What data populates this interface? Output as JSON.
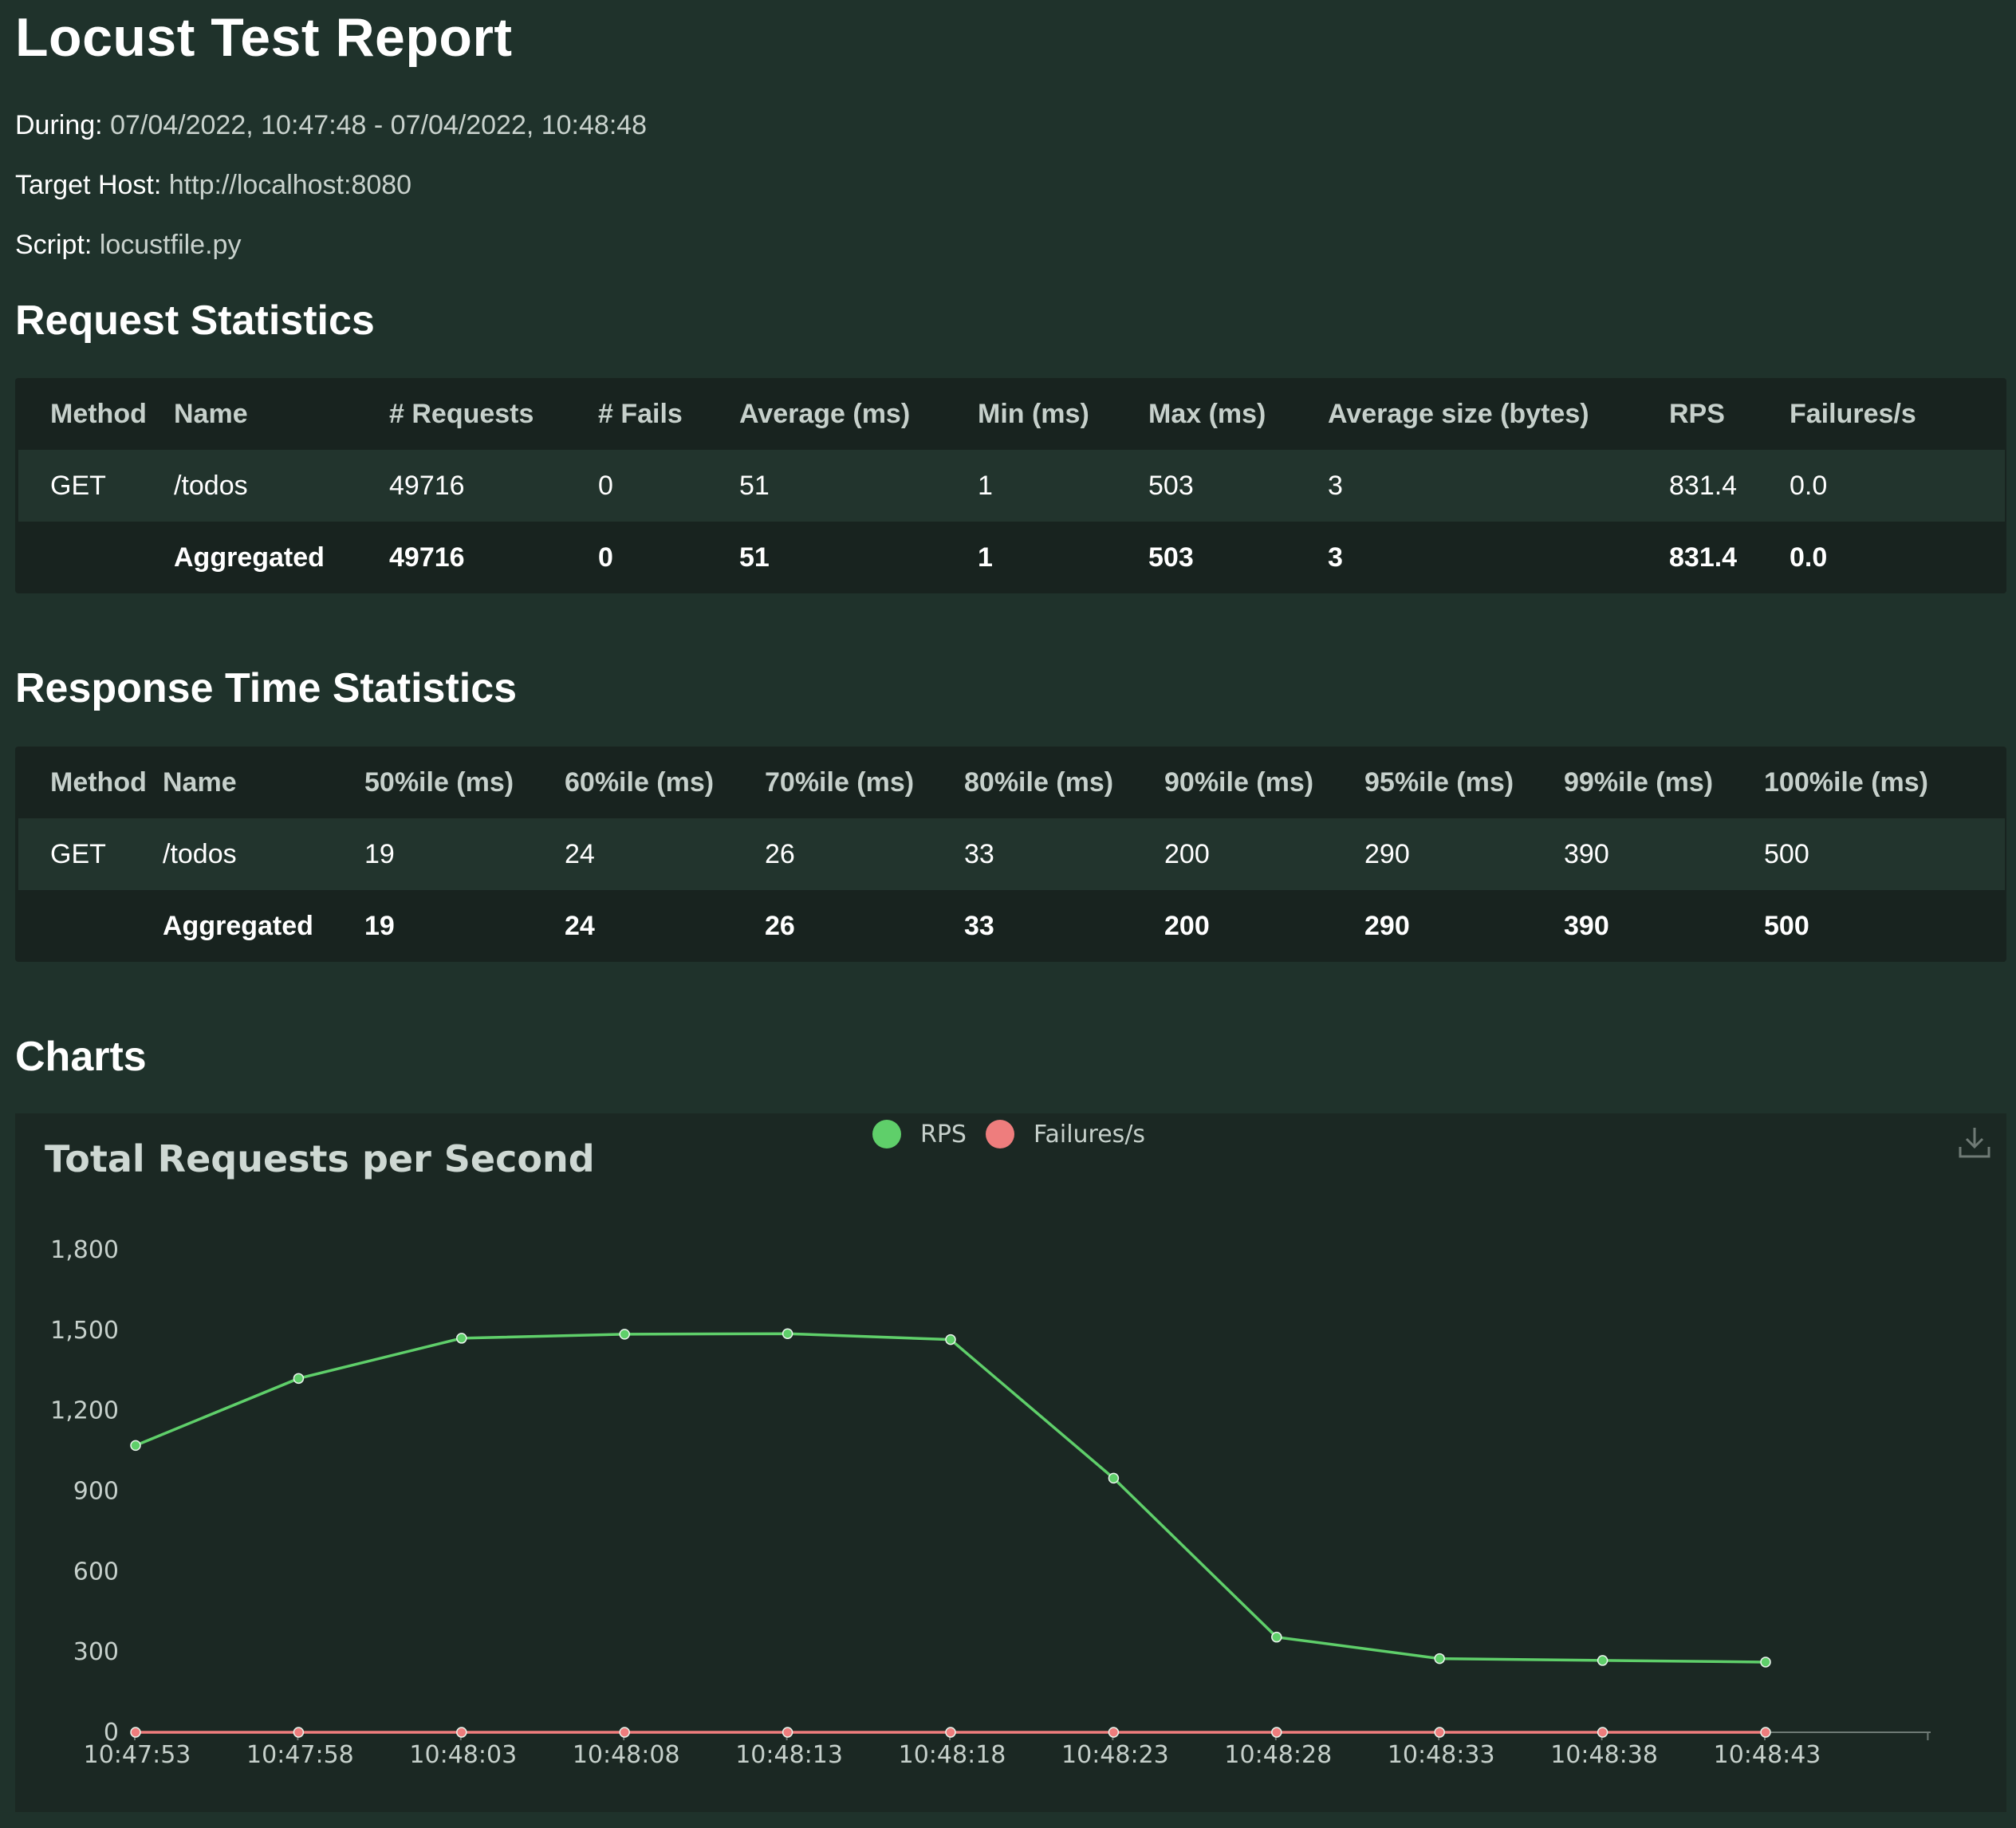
{
  "page": {
    "title": "Locust Test Report",
    "during_label": "During:",
    "during_value": "07/04/2022, 10:47:48 - 07/04/2022, 10:48:48",
    "host_label": "Target Host:",
    "host_value": "http://localhost:8080",
    "script_label": "Script:",
    "script_value": "locustfile.py"
  },
  "request_stats": {
    "heading": "Request Statistics",
    "columns": [
      "Method",
      "Name",
      "# Requests",
      "# Fails",
      "Average (ms)",
      "Min (ms)",
      "Max (ms)",
      "Average size (bytes)",
      "RPS",
      "Failures/s"
    ],
    "rows": [
      [
        "GET",
        "/todos",
        "49716",
        "0",
        "51",
        "1",
        "503",
        "3",
        "831.4",
        "0.0"
      ]
    ],
    "aggregated": [
      "",
      "Aggregated",
      "49716",
      "0",
      "51",
      "1",
      "503",
      "3",
      "831.4",
      "0.0"
    ]
  },
  "response_stats": {
    "heading": "Response Time Statistics",
    "columns": [
      "Method",
      "Name",
      "50%ile (ms)",
      "60%ile (ms)",
      "70%ile (ms)",
      "80%ile (ms)",
      "90%ile (ms)",
      "95%ile (ms)",
      "99%ile (ms)",
      "100%ile (ms)"
    ],
    "rows": [
      [
        "GET",
        "/todos",
        "19",
        "24",
        "26",
        "33",
        "200",
        "290",
        "390",
        "500"
      ]
    ],
    "aggregated": [
      "",
      "Aggregated",
      "19",
      "24",
      "26",
      "33",
      "200",
      "290",
      "390",
      "500"
    ]
  },
  "charts": {
    "heading": "Charts",
    "download_icon": "download-icon"
  },
  "chart_data": {
    "type": "line",
    "title": "Total Requests per Second",
    "legend_position": "top-center",
    "x": [
      "10:47:53",
      "10:47:58",
      "10:48:03",
      "10:48:08",
      "10:48:13",
      "10:48:18",
      "10:48:23",
      "10:48:28",
      "10:48:33",
      "10:48:38",
      "10:48:43"
    ],
    "ylim": [
      0,
      1800
    ],
    "yticks": [
      0,
      300,
      600,
      900,
      1200,
      1500,
      1800
    ],
    "ytick_labels": [
      "0",
      "300",
      "600",
      "900",
      "1,200",
      "1,500",
      "1,800"
    ],
    "grid": false,
    "series": [
      {
        "name": "RPS",
        "color": "#5fcf6a",
        "values": [
          1070,
          1320,
          1470,
          1485,
          1487,
          1465,
          948,
          355,
          275,
          268,
          262
        ]
      },
      {
        "name": "Failures/s",
        "color": "#ee7d7d",
        "values": [
          0,
          0,
          0,
          0,
          0,
          0,
          0,
          0,
          0,
          0,
          0
        ]
      }
    ]
  }
}
